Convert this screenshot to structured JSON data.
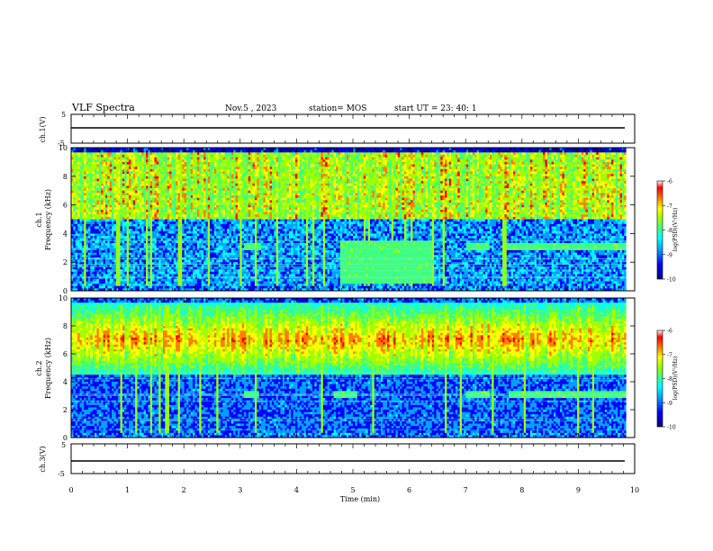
{
  "header": {
    "title": "VLF Spectra",
    "date": "Nov.5 , 2023",
    "station": "station= MOS",
    "start": "start UT = 23: 40: 1"
  },
  "chart_data": [
    {
      "type": "line",
      "panel": "ch1-waveform",
      "ylabel": "ch.1(V)",
      "ylim": [
        -5,
        5
      ],
      "yticks": [
        "5",
        "-5"
      ],
      "xlim": [
        0,
        10
      ],
      "series": [
        {
          "x": [
            0,
            9.85
          ],
          "values": [
            0,
            0
          ]
        }
      ]
    },
    {
      "type": "heatmap",
      "panel": "ch1-spectrogram",
      "ylabel": "ch.1\nFrequency (kHz)",
      "ylabel_line1": "ch.1",
      "ylabel_line2": "Frequency (kHz)",
      "ylim": [
        0,
        10
      ],
      "yticks": [
        "0",
        "2",
        "4",
        "6",
        "8",
        "10"
      ],
      "xlim": [
        0,
        10
      ],
      "data_extent_x": [
        0,
        9.85
      ],
      "colorbar": {
        "label": "log(PSD)(V²/Hz)",
        "range": [
          -10,
          -6
        ],
        "ticks": [
          "-6",
          "-7",
          "-8",
          "-9",
          "-10"
        ]
      },
      "features": {
        "band_3khz_segments": [
          [
            3.05,
            3.35
          ],
          [
            7.0,
            7.4
          ],
          [
            7.7,
            9.85
          ]
        ],
        "enhanced_block": {
          "x": [
            4.75,
            6.4
          ],
          "y": [
            0.5,
            3.5
          ]
        }
      }
    },
    {
      "type": "heatmap",
      "panel": "ch2-spectrogram",
      "ylabel": "ch.2\nFrequency (kHz)",
      "ylabel_line1": "ch.2",
      "ylabel_line2": "Frequency (kHz)",
      "ylim": [
        0,
        10
      ],
      "yticks": [
        "0",
        "2",
        "4",
        "6",
        "8",
        "10"
      ],
      "xlim": [
        0,
        10
      ],
      "data_extent_x": [
        0,
        9.85
      ],
      "colorbar": {
        "label": "log(PSD)(V²/Hz)",
        "range": [
          -10,
          -6
        ],
        "ticks": [
          "-6",
          "-7",
          "-8",
          "-9",
          "-10"
        ]
      },
      "features": {
        "band_3khz_segments": [
          [
            3.05,
            3.3
          ],
          [
            4.65,
            5.05
          ],
          [
            7.0,
            7.4
          ],
          [
            7.75,
            9.85
          ]
        ]
      }
    },
    {
      "type": "line",
      "panel": "ch3-waveform",
      "ylabel": "ch.3(V)",
      "ylim": [
        -5,
        5
      ],
      "yticks": [
        "5",
        "-5"
      ],
      "xlim": [
        0,
        10
      ],
      "xlabel": "Time (min)",
      "xticks": [
        "0",
        "1",
        "2",
        "3",
        "4",
        "5",
        "6",
        "7",
        "8",
        "9",
        "10"
      ],
      "series": [
        {
          "x": [
            0,
            9.85
          ],
          "values": [
            0,
            0
          ]
        }
      ]
    }
  ],
  "colors": {
    "cmap": [
      "#000080",
      "#0000ff",
      "#00a0ff",
      "#00ffff",
      "#40ff80",
      "#a0ff00",
      "#ffff00",
      "#ff8000",
      "#ff0000",
      "#ffffff"
    ]
  }
}
